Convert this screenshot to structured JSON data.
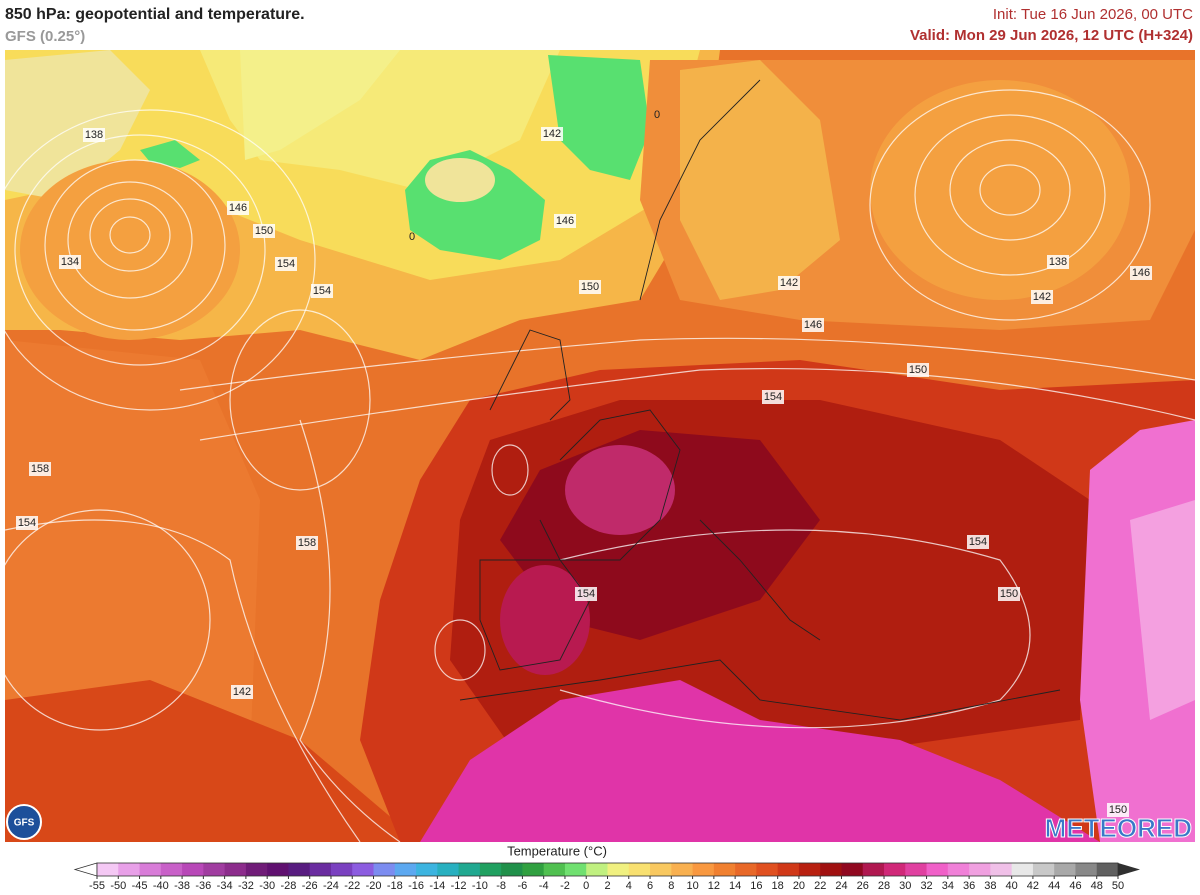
{
  "header": {
    "title": "850 hPa: geopotential and temperature.",
    "subtitle": "GFS (0.25°)",
    "init": "Init: Tue 16 Jun 2026, 00 UTC",
    "valid": "Valid: Mon 29 Jun 2026, 12 UTC (H+324)"
  },
  "map": {
    "contour_labels": [
      138,
      134,
      142,
      146,
      150,
      154,
      154,
      158,
      154,
      158,
      142,
      0,
      146,
      150,
      0,
      142,
      146,
      138,
      142,
      146,
      150,
      154,
      154,
      154,
      150,
      150
    ]
  },
  "colorbar": {
    "title": "Temperature (°C)",
    "ticks": [
      -55,
      -50,
      -45,
      -40,
      -38,
      -36,
      -34,
      -32,
      -30,
      -28,
      -26,
      -24,
      -22,
      -20,
      -18,
      -16,
      -14,
      -12,
      -10,
      -8,
      -6,
      -4,
      -2,
      0,
      2,
      4,
      6,
      8,
      10,
      12,
      14,
      16,
      18,
      20,
      22,
      24,
      26,
      28,
      30,
      32,
      34,
      36,
      38,
      40,
      42,
      44,
      46,
      48,
      50
    ],
    "colors": [
      "#f4c8f4",
      "#e8a0e8",
      "#d87cd8",
      "#c860c8",
      "#b848b8",
      "#a03ca0",
      "#8c2c8c",
      "#701c78",
      "#601070",
      "#581c80",
      "#6a2ca0",
      "#7a40c0",
      "#8c5ce0",
      "#7c8cf0",
      "#5ca8f0",
      "#3cb4e0",
      "#28b0c0",
      "#20a890",
      "#20a060",
      "#20904a",
      "#30a040",
      "#50c050",
      "#70e070",
      "#c0f080",
      "#f0f080",
      "#f8e070",
      "#f8c860",
      "#f8b050",
      "#f89840",
      "#f08030",
      "#e86828",
      "#e05020",
      "#d03818",
      "#b82010",
      "#a01010",
      "#900820",
      "#b01850",
      "#d02878",
      "#e040a0",
      "#f060c8",
      "#f080d8",
      "#f0a0e0",
      "#f0c0e8",
      "#e8e8e8",
      "#c8c8c8",
      "#a8a8a8",
      "#888888",
      "#606060"
    ]
  },
  "logos": {
    "left": "GFS",
    "right": "METEORED"
  }
}
